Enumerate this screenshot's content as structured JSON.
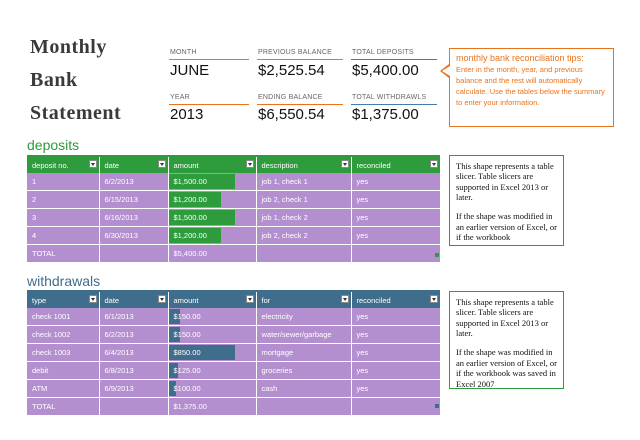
{
  "title": {
    "line1": "Monthly",
    "line2": "Bank",
    "line3": "Statement"
  },
  "summary": {
    "month_label": "MONTH",
    "month_value": "JUNE",
    "prev_balance_label": "PREVIOUS BALANCE",
    "prev_balance_value": "$2,525.54",
    "total_deposits_label": "TOTAL DEPOSITS",
    "total_deposits_value": "$5,400.00",
    "year_label": "YEAR",
    "year_value": "2013",
    "ending_balance_label": "ENDING BALANCE",
    "ending_balance_value": "$6,550.54",
    "total_withdrawals_label": "TOTAL WITHDRAWLS",
    "total_withdrawals_value": "$1,375.00"
  },
  "tips": {
    "title": "monthly bank reconciliation tips:",
    "body": "Enter in the month, year, and previous balance and the rest will automatically calculate.  Use the tables below the summary to enter your information."
  },
  "deposits": {
    "title": "deposits",
    "headers": [
      "deposit no.",
      "date",
      "amount",
      "description",
      "reconciled"
    ],
    "rows": [
      {
        "no": "1",
        "date": "6/2/2013",
        "amount": "$1,500.00",
        "bar": 1.0,
        "description": "job 1, check 1",
        "reconciled": "yes"
      },
      {
        "no": "2",
        "date": "6/15/2013",
        "amount": "$1,200.00",
        "bar": 0.8,
        "description": "job 2, check 1",
        "reconciled": "yes"
      },
      {
        "no": "3",
        "date": "6/16/2013",
        "amount": "$1,500.00",
        "bar": 1.0,
        "description": "job 1, check 2",
        "reconciled": "yes"
      },
      {
        "no": "4",
        "date": "6/30/2013",
        "amount": "$1,200.00",
        "bar": 0.8,
        "description": "job 2, check 2",
        "reconciled": "yes"
      }
    ],
    "total_label": "TOTAL",
    "total_value": "$5,400.00"
  },
  "withdrawals": {
    "title": "withdrawals",
    "headers": [
      "type",
      "date",
      "amount",
      "for",
      "reconciled"
    ],
    "rows": [
      {
        "type": "check 1001",
        "date": "6/1/2013",
        "amount": "$150.00",
        "bar": 0.1765,
        "for": "electricity",
        "reconciled": "yes"
      },
      {
        "type": "check 1002",
        "date": "6/2/2013",
        "amount": "$150.00",
        "bar": 0.1765,
        "for": "water/sewer/garbage",
        "reconciled": "yes"
      },
      {
        "type": "check 1003",
        "date": "6/4/2013",
        "amount": "$850.00",
        "bar": 1.0,
        "for": "mortgage",
        "reconciled": "yes"
      },
      {
        "type": "debit",
        "date": "6/8/2013",
        "amount": "$125.00",
        "bar": 0.147,
        "for": "groceries",
        "reconciled": "yes"
      },
      {
        "type": "ATM",
        "date": "6/9/2013",
        "amount": "$100.00",
        "bar": 0.1176,
        "for": "cash",
        "reconciled": "yes"
      }
    ],
    "total_label": "TOTAL",
    "total_value": "$1,375.00"
  },
  "slicer_note_1": {
    "para1": "This shape represents a table slicer. Table slicers are supported in Excel 2013 or later.",
    "para2": "If the shape was modified in an earlier version of Excel, or if the workbook"
  },
  "slicer_note_2": {
    "para1": "This shape represents a table slicer. Table slicers are supported in Excel 2013 or later.",
    "para2": "If the shape was modified in an earlier version of Excel, or if the workbook was saved in Excel 2007"
  },
  "colors": {
    "deposit_header": "#2e9b3c",
    "withdrawal_header": "#3f6d8c",
    "row_fill": "#b48fcf",
    "deposit_bar": "#2e9b3c",
    "withdrawal_bar": "#3f6d8c",
    "accent_orange": "#e8731e",
    "accent_blue": "#4a7aa8"
  }
}
